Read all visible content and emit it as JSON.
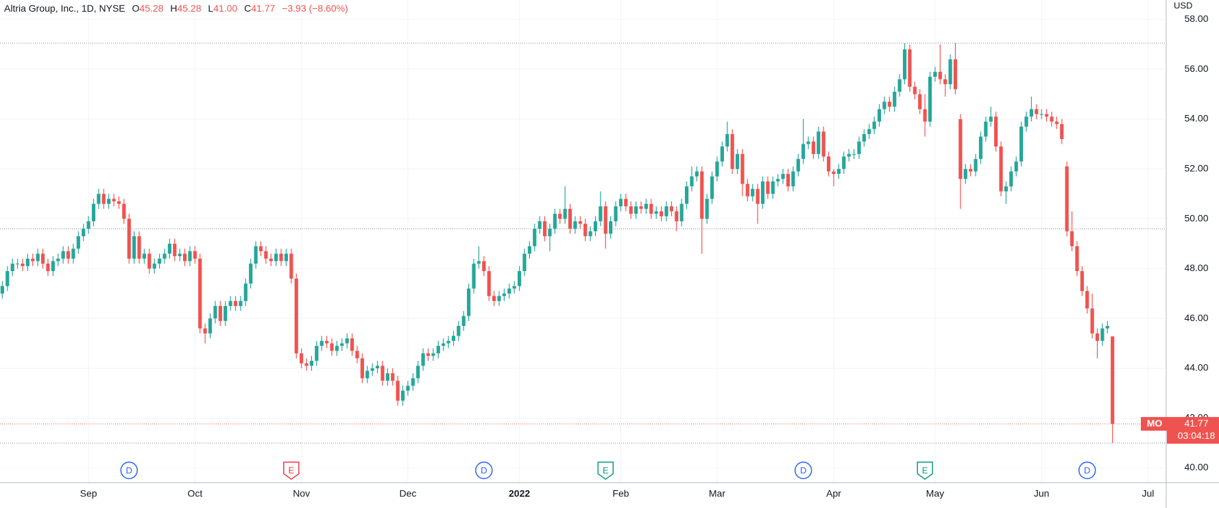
{
  "chart_data": {
    "type": "candlestick",
    "title": "Altria Group, Inc., 1D, NYSE",
    "symbol": "MO",
    "currency": "USD",
    "countdown": "03:04:18",
    "last_bar": {
      "prefixes": [
        "O",
        "H",
        "L",
        "C"
      ],
      "labels": [
        "45.28",
        "45.28",
        "41.00",
        "41.77"
      ],
      "change": "−3.93 (−8.60%)"
    },
    "categories": [
      null,
      null,
      null,
      null,
      null,
      null,
      null,
      null,
      null,
      null,
      null,
      null,
      null,
      null,
      null,
      null,
      null,
      "Sep",
      null,
      null,
      null,
      null,
      null,
      null,
      null,
      null,
      null,
      null,
      null,
      null,
      null,
      null,
      null,
      null,
      null,
      null,
      null,
      null,
      "Oct",
      null,
      null,
      null,
      null,
      null,
      null,
      null,
      null,
      null,
      null,
      null,
      null,
      null,
      null,
      null,
      null,
      null,
      null,
      null,
      null,
      "Nov",
      null,
      null,
      null,
      null,
      null,
      null,
      null,
      null,
      null,
      null,
      null,
      null,
      null,
      null,
      null,
      null,
      null,
      null,
      null,
      null,
      "Dec",
      null,
      null,
      null,
      null,
      null,
      null,
      null,
      null,
      null,
      null,
      null,
      null,
      null,
      null,
      null,
      null,
      null,
      null,
      null,
      null,
      null,
      "2022",
      null,
      null,
      null,
      null,
      null,
      null,
      null,
      null,
      null,
      null,
      null,
      null,
      null,
      null,
      null,
      null,
      null,
      null,
      null,
      "Feb",
      null,
      null,
      null,
      null,
      null,
      null,
      null,
      null,
      null,
      null,
      null,
      null,
      null,
      null,
      null,
      null,
      null,
      null,
      "Mar",
      null,
      null,
      null,
      null,
      null,
      null,
      null,
      null,
      null,
      null,
      null,
      null,
      null,
      null,
      null,
      null,
      null,
      null,
      null,
      null,
      null,
      null,
      "Apr",
      null,
      null,
      null,
      null,
      null,
      null,
      null,
      null,
      null,
      null,
      null,
      null,
      null,
      null,
      null,
      null,
      null,
      null,
      null,
      "May",
      null,
      null,
      null,
      null,
      null,
      null,
      null,
      null,
      null,
      null,
      null,
      null,
      null,
      null,
      null,
      null,
      null,
      null,
      null,
      null,
      "Jun",
      null,
      null,
      null,
      null,
      null,
      null,
      null,
      null,
      null,
      null,
      null,
      null,
      null,
      null,
      null,
      null,
      null,
      null,
      null,
      null,
      "Jul"
    ],
    "series": [
      {
        "up_color": "#26a69a",
        "down_color": "#ef5350",
        "open": [
          47.0,
          47.3,
          47.9,
          48.2,
          48.2,
          48.1,
          48.4,
          48.3,
          48.6,
          48.2,
          47.9,
          48.3,
          48.4,
          48.7,
          48.4,
          48.8,
          49.3,
          49.6,
          49.9,
          50.6,
          51.0,
          50.6,
          50.8,
          50.7,
          50.6,
          50.0,
          48.4,
          49.3,
          48.4,
          48.6,
          48.0,
          48.2,
          48.4,
          48.6,
          49.0,
          48.5,
          48.6,
          48.3,
          48.7,
          48.4,
          45.6,
          45.4,
          46.0,
          46.5,
          45.9,
          46.5,
          46.7,
          46.5,
          46.7,
          47.4,
          48.2,
          48.9,
          48.7,
          48.4,
          48.3,
          48.6,
          48.3,
          48.6,
          47.6,
          44.6,
          44.2,
          44.1,
          44.3,
          44.9,
          45.1,
          45.0,
          44.7,
          44.9,
          45.0,
          45.2,
          44.7,
          44.4,
          43.6,
          43.9,
          44.0,
          44.1,
          43.5,
          43.8,
          43.5,
          42.7,
          43.1,
          43.3,
          43.6,
          44.1,
          44.6,
          44.5,
          44.6,
          44.9,
          45.0,
          45.1,
          45.3,
          45.7,
          46.1,
          47.2,
          48.2,
          48.3,
          47.9,
          46.9,
          46.7,
          46.9,
          47.0,
          47.2,
          47.3,
          47.9,
          48.6,
          48.9,
          49.6,
          49.9,
          49.3,
          49.6,
          50.2,
          50.0,
          50.4,
          49.6,
          49.9,
          49.8,
          49.3,
          49.5,
          49.9,
          50.5,
          49.4,
          49.9,
          50.5,
          50.8,
          50.5,
          50.2,
          50.5,
          50.4,
          50.6,
          50.2,
          50.3,
          50.1,
          50.5,
          50.3,
          49.9,
          50.6,
          51.3,
          51.7,
          51.9,
          50.0,
          50.8,
          51.7,
          52.3,
          52.9,
          53.4,
          52.0,
          52.6,
          51.4,
          50.9,
          51.2,
          50.6,
          51.5,
          51.0,
          51.5,
          51.6,
          51.8,
          51.3,
          51.9,
          52.4,
          53.0,
          53.1,
          52.6,
          53.5,
          52.5,
          51.9,
          51.8,
          52.0,
          52.5,
          52.6,
          52.6,
          53.1,
          53.4,
          53.6,
          53.9,
          54.4,
          54.7,
          54.5,
          55.1,
          55.6,
          56.8,
          55.3,
          55.0,
          54.4,
          53.9,
          55.7,
          55.9,
          55.6,
          55.4,
          56.4,
          54.0,
          51.6,
          52.0,
          51.9,
          52.4,
          53.3,
          53.9,
          54.1,
          52.9,
          51.1,
          51.3,
          51.9,
          52.3,
          53.7,
          54.1,
          54.4,
          54.2,
          54.2,
          54.1,
          53.9,
          53.8,
          52.1,
          49.5,
          48.9,
          47.9,
          47.1,
          46.4,
          45.4,
          45.1,
          45.6,
          45.28,
          null,
          null,
          null,
          null,
          null,
          null,
          null
        ],
        "high": [
          47.5,
          48.1,
          48.4,
          48.4,
          48.4,
          48.6,
          48.6,
          48.8,
          48.8,
          48.4,
          48.5,
          48.6,
          48.9,
          48.9,
          49.0,
          49.5,
          49.8,
          50.1,
          50.8,
          51.2,
          51.2,
          51.0,
          51.0,
          50.9,
          50.8,
          50.2,
          49.5,
          49.5,
          48.8,
          48.8,
          48.4,
          48.6,
          48.8,
          49.2,
          49.2,
          48.8,
          48.8,
          48.9,
          48.9,
          48.6,
          45.8,
          46.2,
          46.7,
          46.7,
          46.7,
          46.9,
          46.9,
          46.9,
          47.6,
          48.4,
          49.1,
          49.1,
          48.9,
          48.6,
          48.8,
          48.8,
          48.8,
          48.8,
          47.8,
          44.8,
          44.4,
          44.5,
          45.1,
          45.3,
          45.3,
          45.2,
          45.1,
          45.2,
          45.4,
          45.4,
          44.9,
          44.6,
          44.1,
          44.2,
          44.3,
          44.3,
          44.0,
          44.0,
          43.7,
          43.3,
          43.5,
          43.8,
          44.3,
          44.8,
          44.8,
          44.8,
          45.1,
          45.2,
          45.3,
          45.5,
          45.9,
          46.3,
          47.4,
          48.4,
          48.9,
          48.5,
          48.1,
          47.1,
          47.1,
          47.2,
          47.4,
          47.5,
          48.1,
          48.8,
          49.1,
          49.8,
          50.1,
          50.1,
          49.8,
          50.4,
          50.4,
          51.3,
          50.6,
          50.1,
          50.1,
          50.0,
          49.7,
          50.1,
          51.1,
          50.7,
          50.1,
          50.7,
          51.0,
          51.0,
          50.7,
          50.7,
          50.7,
          50.8,
          50.8,
          50.5,
          50.5,
          50.7,
          50.7,
          50.5,
          50.8,
          51.5,
          52.1,
          52.1,
          52.1,
          51.0,
          51.9,
          52.5,
          53.1,
          53.9,
          53.6,
          52.8,
          52.8,
          51.6,
          51.4,
          51.4,
          51.7,
          51.7,
          51.7,
          51.8,
          52.0,
          52.0,
          52.1,
          52.6,
          54.0,
          53.3,
          53.3,
          53.7,
          53.7,
          52.7,
          52.0,
          52.2,
          52.7,
          52.8,
          52.8,
          53.3,
          53.6,
          53.8,
          54.1,
          54.6,
          54.9,
          54.9,
          55.3,
          55.8,
          57.05,
          57.0,
          55.5,
          55.2,
          55.0,
          55.9,
          56.1,
          57.0,
          55.8,
          56.6,
          57.05,
          54.2,
          52.2,
          52.2,
          52.6,
          53.5,
          54.1,
          54.5,
          54.3,
          53.1,
          51.5,
          52.1,
          52.5,
          53.9,
          54.3,
          54.9,
          54.6,
          54.4,
          54.4,
          54.3,
          54.1,
          54.0,
          52.3,
          50.3,
          49.1,
          48.1,
          47.3,
          47.0,
          45.6,
          45.8,
          45.9,
          45.28,
          null,
          null,
          null,
          null,
          null,
          null,
          null
        ],
        "low": [
          46.8,
          47.1,
          47.7,
          48.0,
          47.9,
          47.9,
          48.1,
          48.1,
          48.0,
          47.7,
          47.7,
          48.1,
          48.2,
          48.2,
          48.2,
          48.6,
          49.1,
          49.4,
          49.7,
          50.4,
          50.4,
          50.4,
          50.5,
          50.4,
          49.8,
          48.2,
          48.2,
          48.2,
          48.2,
          47.8,
          47.8,
          48.0,
          48.2,
          48.4,
          48.3,
          48.3,
          48.1,
          48.1,
          48.2,
          45.4,
          45.0,
          45.2,
          45.8,
          45.7,
          45.7,
          46.3,
          46.3,
          46.3,
          46.5,
          47.2,
          48.0,
          48.5,
          48.2,
          48.1,
          48.1,
          48.1,
          48.1,
          47.4,
          44.4,
          44.0,
          43.9,
          43.9,
          44.1,
          44.7,
          44.8,
          44.5,
          44.5,
          44.7,
          44.8,
          44.5,
          44.2,
          43.4,
          43.4,
          43.7,
          43.8,
          43.3,
          43.3,
          43.3,
          42.5,
          42.5,
          42.9,
          43.1,
          43.4,
          43.9,
          44.3,
          44.3,
          44.4,
          44.7,
          44.8,
          44.9,
          45.1,
          45.5,
          45.9,
          47.0,
          48.0,
          47.7,
          46.7,
          46.5,
          46.5,
          46.7,
          46.8,
          47.0,
          47.1,
          47.7,
          48.4,
          48.7,
          49.4,
          49.1,
          48.7,
          49.4,
          49.8,
          49.8,
          49.4,
          49.4,
          49.6,
          49.1,
          49.1,
          49.3,
          49.7,
          48.8,
          49.2,
          49.7,
          50.3,
          50.3,
          50.0,
          50.0,
          50.2,
          50.2,
          50.0,
          50.0,
          49.9,
          49.9,
          50.1,
          49.5,
          49.7,
          50.4,
          51.1,
          51.5,
          48.6,
          49.8,
          50.6,
          51.5,
          52.1,
          52.7,
          51.8,
          51.8,
          50.9,
          50.7,
          50.7,
          49.8,
          50.4,
          50.8,
          50.8,
          51.3,
          51.4,
          51.1,
          51.1,
          51.7,
          52.2,
          52.8,
          52.4,
          52.4,
          52.3,
          51.7,
          51.3,
          51.6,
          51.8,
          52.3,
          52.4,
          52.4,
          52.9,
          53.2,
          53.4,
          53.7,
          54.2,
          54.3,
          54.3,
          54.9,
          55.4,
          55.1,
          54.8,
          54.2,
          53.3,
          53.7,
          55.5,
          55.4,
          54.9,
          55.2,
          55.0,
          50.4,
          51.4,
          51.7,
          51.7,
          52.2,
          53.1,
          53.7,
          52.7,
          50.9,
          50.6,
          51.1,
          51.7,
          52.1,
          53.5,
          53.9,
          54.0,
          54.0,
          53.9,
          53.7,
          53.6,
          53.0,
          49.3,
          48.7,
          47.7,
          46.9,
          46.2,
          45.2,
          44.4,
          44.9,
          45.4,
          41.0,
          null,
          null,
          null,
          null,
          null,
          null,
          null
        ],
        "close": [
          47.3,
          47.9,
          48.2,
          48.2,
          48.1,
          48.4,
          48.3,
          48.6,
          48.2,
          47.9,
          48.3,
          48.4,
          48.7,
          48.4,
          48.8,
          49.3,
          49.6,
          49.9,
          50.6,
          51.0,
          50.6,
          50.8,
          50.7,
          50.6,
          50.0,
          48.4,
          49.3,
          48.4,
          48.6,
          48.0,
          48.2,
          48.4,
          48.6,
          49.0,
          48.5,
          48.6,
          48.3,
          48.7,
          48.4,
          45.6,
          45.4,
          46.0,
          46.5,
          45.9,
          46.5,
          46.7,
          46.5,
          46.7,
          47.4,
          48.2,
          48.9,
          48.7,
          48.4,
          48.3,
          48.6,
          48.3,
          48.6,
          47.6,
          44.6,
          44.2,
          44.1,
          44.3,
          44.9,
          45.1,
          45.0,
          44.7,
          44.9,
          45.0,
          45.2,
          44.7,
          44.4,
          43.6,
          43.9,
          44.0,
          44.1,
          43.5,
          43.8,
          43.5,
          42.7,
          43.1,
          43.3,
          43.6,
          44.1,
          44.6,
          44.5,
          44.6,
          44.9,
          45.0,
          45.1,
          45.3,
          45.7,
          46.1,
          47.2,
          48.2,
          48.3,
          47.9,
          46.9,
          46.7,
          46.9,
          47.0,
          47.2,
          47.3,
          47.9,
          48.6,
          48.9,
          49.6,
          49.9,
          49.3,
          49.6,
          50.2,
          50.0,
          50.4,
          49.6,
          49.9,
          49.8,
          49.3,
          49.5,
          49.9,
          50.5,
          49.4,
          49.9,
          50.5,
          50.8,
          50.5,
          50.2,
          50.5,
          50.4,
          50.6,
          50.2,
          50.3,
          50.1,
          50.5,
          50.3,
          49.9,
          50.6,
          51.3,
          51.7,
          51.9,
          50.0,
          50.8,
          51.7,
          52.3,
          52.9,
          53.4,
          52.0,
          52.6,
          51.4,
          50.9,
          51.2,
          50.6,
          51.5,
          51.0,
          51.5,
          51.6,
          51.8,
          51.3,
          51.9,
          52.4,
          53.0,
          53.1,
          52.6,
          53.5,
          52.5,
          51.9,
          51.8,
          52.0,
          52.5,
          52.6,
          52.6,
          53.1,
          53.4,
          53.6,
          53.9,
          54.4,
          54.7,
          54.5,
          55.1,
          55.6,
          56.8,
          55.3,
          55.0,
          54.4,
          53.9,
          55.7,
          55.9,
          55.6,
          55.4,
          56.4,
          55.2,
          51.6,
          52.0,
          51.9,
          52.4,
          53.3,
          53.9,
          54.1,
          52.9,
          51.1,
          51.3,
          51.9,
          52.3,
          53.7,
          54.1,
          54.4,
          54.2,
          54.2,
          54.1,
          53.9,
          53.8,
          53.2,
          49.5,
          48.9,
          47.9,
          47.1,
          46.4,
          45.4,
          45.1,
          45.6,
          45.7,
          41.77,
          null,
          null,
          null,
          null,
          null,
          null,
          null
        ]
      }
    ],
    "ylim": [
      39.41,
      58.78
    ],
    "yticks": [
      {
        "value": 40,
        "label": "40.00"
      },
      {
        "value": 42,
        "label": "42.00"
      },
      {
        "value": 44,
        "label": "44.00"
      },
      {
        "value": 46,
        "label": "46.00"
      },
      {
        "value": 48,
        "label": "48.00"
      },
      {
        "value": 50,
        "label": "50.00"
      },
      {
        "value": 52,
        "label": "52.00"
      },
      {
        "value": 54,
        "label": "54.00"
      },
      {
        "value": 56,
        "label": "56.00"
      },
      {
        "value": 58,
        "label": "58.00"
      }
    ],
    "grid": true,
    "price_lines": [
      57.05,
      49.6,
      41.0
    ],
    "events": [
      {
        "label": "D",
        "color": "#2962ff",
        "at": 25
      },
      {
        "label": "E",
        "color": "#f23645",
        "at": 57
      },
      {
        "label": "D",
        "color": "#2962ff",
        "at": 95
      },
      {
        "label": "E",
        "color": "#089981",
        "at": 119
      },
      {
        "label": "D",
        "color": "#2962ff",
        "at": 158
      },
      {
        "label": "E",
        "color": "#089981",
        "at": 182
      },
      {
        "label": "D",
        "color": "#2962ff",
        "at": 214
      }
    ]
  }
}
